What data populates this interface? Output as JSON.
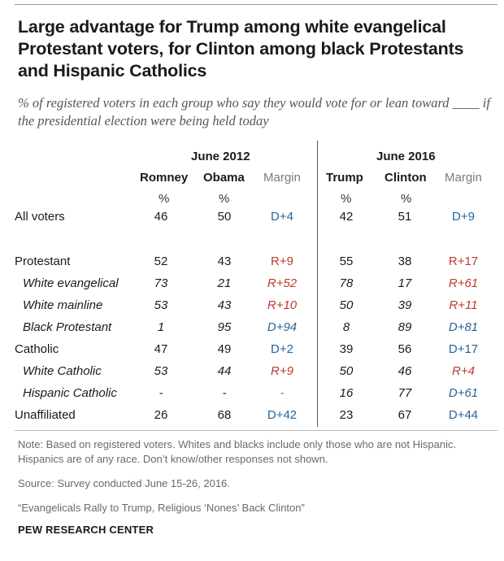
{
  "title": "Large advantage for Trump among white evangelical Protestant voters, for Clinton among black Protestants and Hispanic Catholics",
  "subtitle": "% of registered voters in each group who say they would vote for or lean toward ____ if the presidential election were being held today",
  "periods": [
    "June 2012",
    "June 2016"
  ],
  "columns": [
    "Romney",
    "Obama",
    "Margin",
    "Trump",
    "Clinton",
    "Margin"
  ],
  "units": [
    "%",
    "%",
    "%",
    "%"
  ],
  "colors": {
    "dem": "#2a6496",
    "rep": "#c0392b",
    "muted": "#7a7a7a"
  },
  "rows": [
    {
      "label": "All voters",
      "italic": false,
      "romney": "46",
      "obama": "50",
      "margin12": "D+4",
      "m12party": "D",
      "trump": "42",
      "clinton": "51",
      "margin16": "D+9",
      "m16party": "D"
    },
    {
      "label": "Protestant",
      "italic": false,
      "romney": "52",
      "obama": "43",
      "margin12": "R+9",
      "m12party": "R",
      "trump": "55",
      "clinton": "38",
      "margin16": "R+17",
      "m16party": "R"
    },
    {
      "label": "White evangelical",
      "italic": true,
      "romney": "73",
      "obama": "21",
      "margin12": "R+52",
      "m12party": "R",
      "trump": "78",
      "clinton": "17",
      "margin16": "R+61",
      "m16party": "R"
    },
    {
      "label": "White mainline",
      "italic": true,
      "romney": "53",
      "obama": "43",
      "margin12": "R+10",
      "m12party": "R",
      "trump": "50",
      "clinton": "39",
      "margin16": "R+11",
      "m16party": "R"
    },
    {
      "label": "Black Protestant",
      "italic": true,
      "romney": "1",
      "obama": "95",
      "margin12": "D+94",
      "m12party": "D",
      "trump": "8",
      "clinton": "89",
      "margin16": "D+81",
      "m16party": "D"
    },
    {
      "label": "Catholic",
      "italic": false,
      "romney": "47",
      "obama": "49",
      "margin12": "D+2",
      "m12party": "D",
      "trump": "39",
      "clinton": "56",
      "margin16": "D+17",
      "m16party": "D"
    },
    {
      "label": "White Catholic",
      "italic": true,
      "romney": "53",
      "obama": "44",
      "margin12": "R+9",
      "m12party": "R",
      "trump": "50",
      "clinton": "46",
      "margin16": "R+4",
      "m16party": "R"
    },
    {
      "label": "Hispanic Catholic",
      "italic": true,
      "romney": "-",
      "obama": "-",
      "margin12": "-",
      "m12party": "",
      "trump": "16",
      "clinton": "77",
      "margin16": "D+61",
      "m16party": "D"
    },
    {
      "label": "Unaffiliated",
      "italic": false,
      "romney": "26",
      "obama": "68",
      "margin12": "D+42",
      "m12party": "D",
      "trump": "23",
      "clinton": "67",
      "margin16": "D+44",
      "m16party": "D"
    }
  ],
  "note": "Note: Based on registered voters. Whites and blacks include only those who are not Hispanic. Hispanics are of any race. Don’t know/other responses not shown.",
  "source": "Source: Survey conducted June 15-26, 2016.",
  "report": "“Evangelicals Rally to Trump, Religious ‘Nones’ Back Clinton”",
  "brand": "PEW RESEARCH CENTER"
}
